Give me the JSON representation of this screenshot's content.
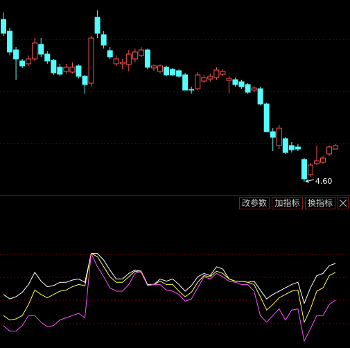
{
  "chart_data": [
    {
      "type": "candlestick",
      "open": [
        6.94,
        6.77,
        6.5,
        6.34,
        6.3,
        6.37,
        6.58,
        6.44,
        6.35,
        6.25,
        6.19,
        6.18,
        6.27,
        6.12,
        6.02,
        6.97,
        6.72,
        6.49,
        6.3,
        6.3,
        6.29,
        6.37,
        6.42,
        6.5,
        6.24,
        6.19,
        6.25,
        6.22,
        6.2,
        6.14,
        5.93,
        5.94,
        6.05,
        6.08,
        6.1,
        6.15,
        6.06,
        6.07,
        6.04,
        6.0,
        5.92,
        5.94,
        5.72,
        5.32,
        5.12,
        5.22,
        5.12,
        5.1,
        4.92,
        4.7,
        4.86,
        4.88,
        5.0,
        5.07
      ],
      "high": [
        7.04,
        6.82,
        6.54,
        6.37,
        6.42,
        6.67,
        6.67,
        6.48,
        6.37,
        6.3,
        6.3,
        6.32,
        6.29,
        6.14,
        6.7,
        7.07,
        6.77,
        6.54,
        6.42,
        6.37,
        6.5,
        6.52,
        6.54,
        6.52,
        6.29,
        6.29,
        6.27,
        6.24,
        6.22,
        6.17,
        5.97,
        6.18,
        6.14,
        6.16,
        6.25,
        6.22,
        6.12,
        6.1,
        6.07,
        6.02,
        5.98,
        5.97,
        5.74,
        5.37,
        5.42,
        5.24,
        5.17,
        5.14,
        4.94,
        4.87,
        5.12,
        4.97,
        5.12,
        5.14
      ],
      "low": [
        6.7,
        6.42,
        6.07,
        6.24,
        6.27,
        6.34,
        6.4,
        6.3,
        6.14,
        6.12,
        6.16,
        6.16,
        6.09,
        5.87,
        5.97,
        6.67,
        6.52,
        6.37,
        6.27,
        6.22,
        6.19,
        6.32,
        6.4,
        6.22,
        6.2,
        6.16,
        6.12,
        6.12,
        6.1,
        5.92,
        5.87,
        5.92,
        6.02,
        6.04,
        6.07,
        6.12,
        5.87,
        5.97,
        5.94,
        5.87,
        5.89,
        5.7,
        5.32,
        5.04,
        5.07,
        5.0,
        5.02,
        5.04,
        4.6,
        4.67,
        4.84,
        4.86,
        4.97,
        5.07
      ],
      "close": [
        6.74,
        6.47,
        6.37,
        6.27,
        6.37,
        6.6,
        6.44,
        6.34,
        6.17,
        6.15,
        6.25,
        6.25,
        6.12,
        6.0,
        6.67,
        6.74,
        6.57,
        6.4,
        6.37,
        6.32,
        6.44,
        6.47,
        6.5,
        6.25,
        6.27,
        6.27,
        6.14,
        6.14,
        6.12,
        5.92,
        5.92,
        6.14,
        6.1,
        6.12,
        6.21,
        6.19,
        6.09,
        6.0,
        5.97,
        5.89,
        5.95,
        5.72,
        5.32,
        5.24,
        5.37,
        5.02,
        5.06,
        5.07,
        4.64,
        4.84,
        4.9,
        4.94,
        5.1,
        5.12
      ],
      "up_color": "#ff5454",
      "down_color": "#54fcfc",
      "ylim": [
        4.4,
        7.22
      ],
      "annotation": "4.60"
    },
    {
      "type": "line",
      "ylim": [
        0,
        100
      ],
      "series": [
        {
          "color": "#ffffff",
          "values": [
            47,
            43,
            45,
            49,
            56,
            67,
            59,
            54,
            55,
            58,
            58,
            60,
            61,
            58,
            84,
            84,
            78,
            69,
            61,
            61,
            66,
            69,
            68,
            56,
            56,
            61,
            59,
            61,
            56,
            50,
            55,
            63,
            66,
            64,
            72,
            70,
            61,
            59,
            59,
            58,
            59,
            51,
            43,
            47,
            50,
            53,
            56,
            58,
            39,
            53,
            64,
            66,
            73,
            75
          ]
        },
        {
          "color": "#ffff54",
          "values": [
            28,
            24,
            25,
            28,
            38,
            51,
            47,
            44,
            47,
            50,
            51,
            54,
            56,
            55,
            84,
            81,
            72,
            63,
            58,
            58,
            63,
            68,
            67,
            55,
            56,
            59,
            56,
            56,
            50,
            45,
            49,
            58,
            64,
            63,
            68,
            66,
            61,
            59,
            59,
            58,
            56,
            45,
            33,
            38,
            44,
            47,
            50,
            51,
            22,
            34,
            50,
            53,
            64,
            67
          ]
        },
        {
          "color": "#ff54ff",
          "values": [
            19,
            14,
            14,
            19,
            28,
            28,
            22,
            18,
            19,
            24,
            26,
            28,
            30,
            26,
            84,
            72,
            63,
            53,
            50,
            50,
            56,
            66,
            68,
            55,
            56,
            56,
            51,
            50,
            47,
            41,
            43,
            53,
            63,
            61,
            66,
            63,
            59,
            58,
            56,
            56,
            50,
            28,
            22,
            28,
            34,
            24,
            33,
            34,
            5,
            16,
            28,
            28,
            38,
            42
          ]
        }
      ]
    }
  ],
  "toolbar": {
    "buttons": [
      "改参数",
      "加指标",
      "换指标"
    ]
  }
}
